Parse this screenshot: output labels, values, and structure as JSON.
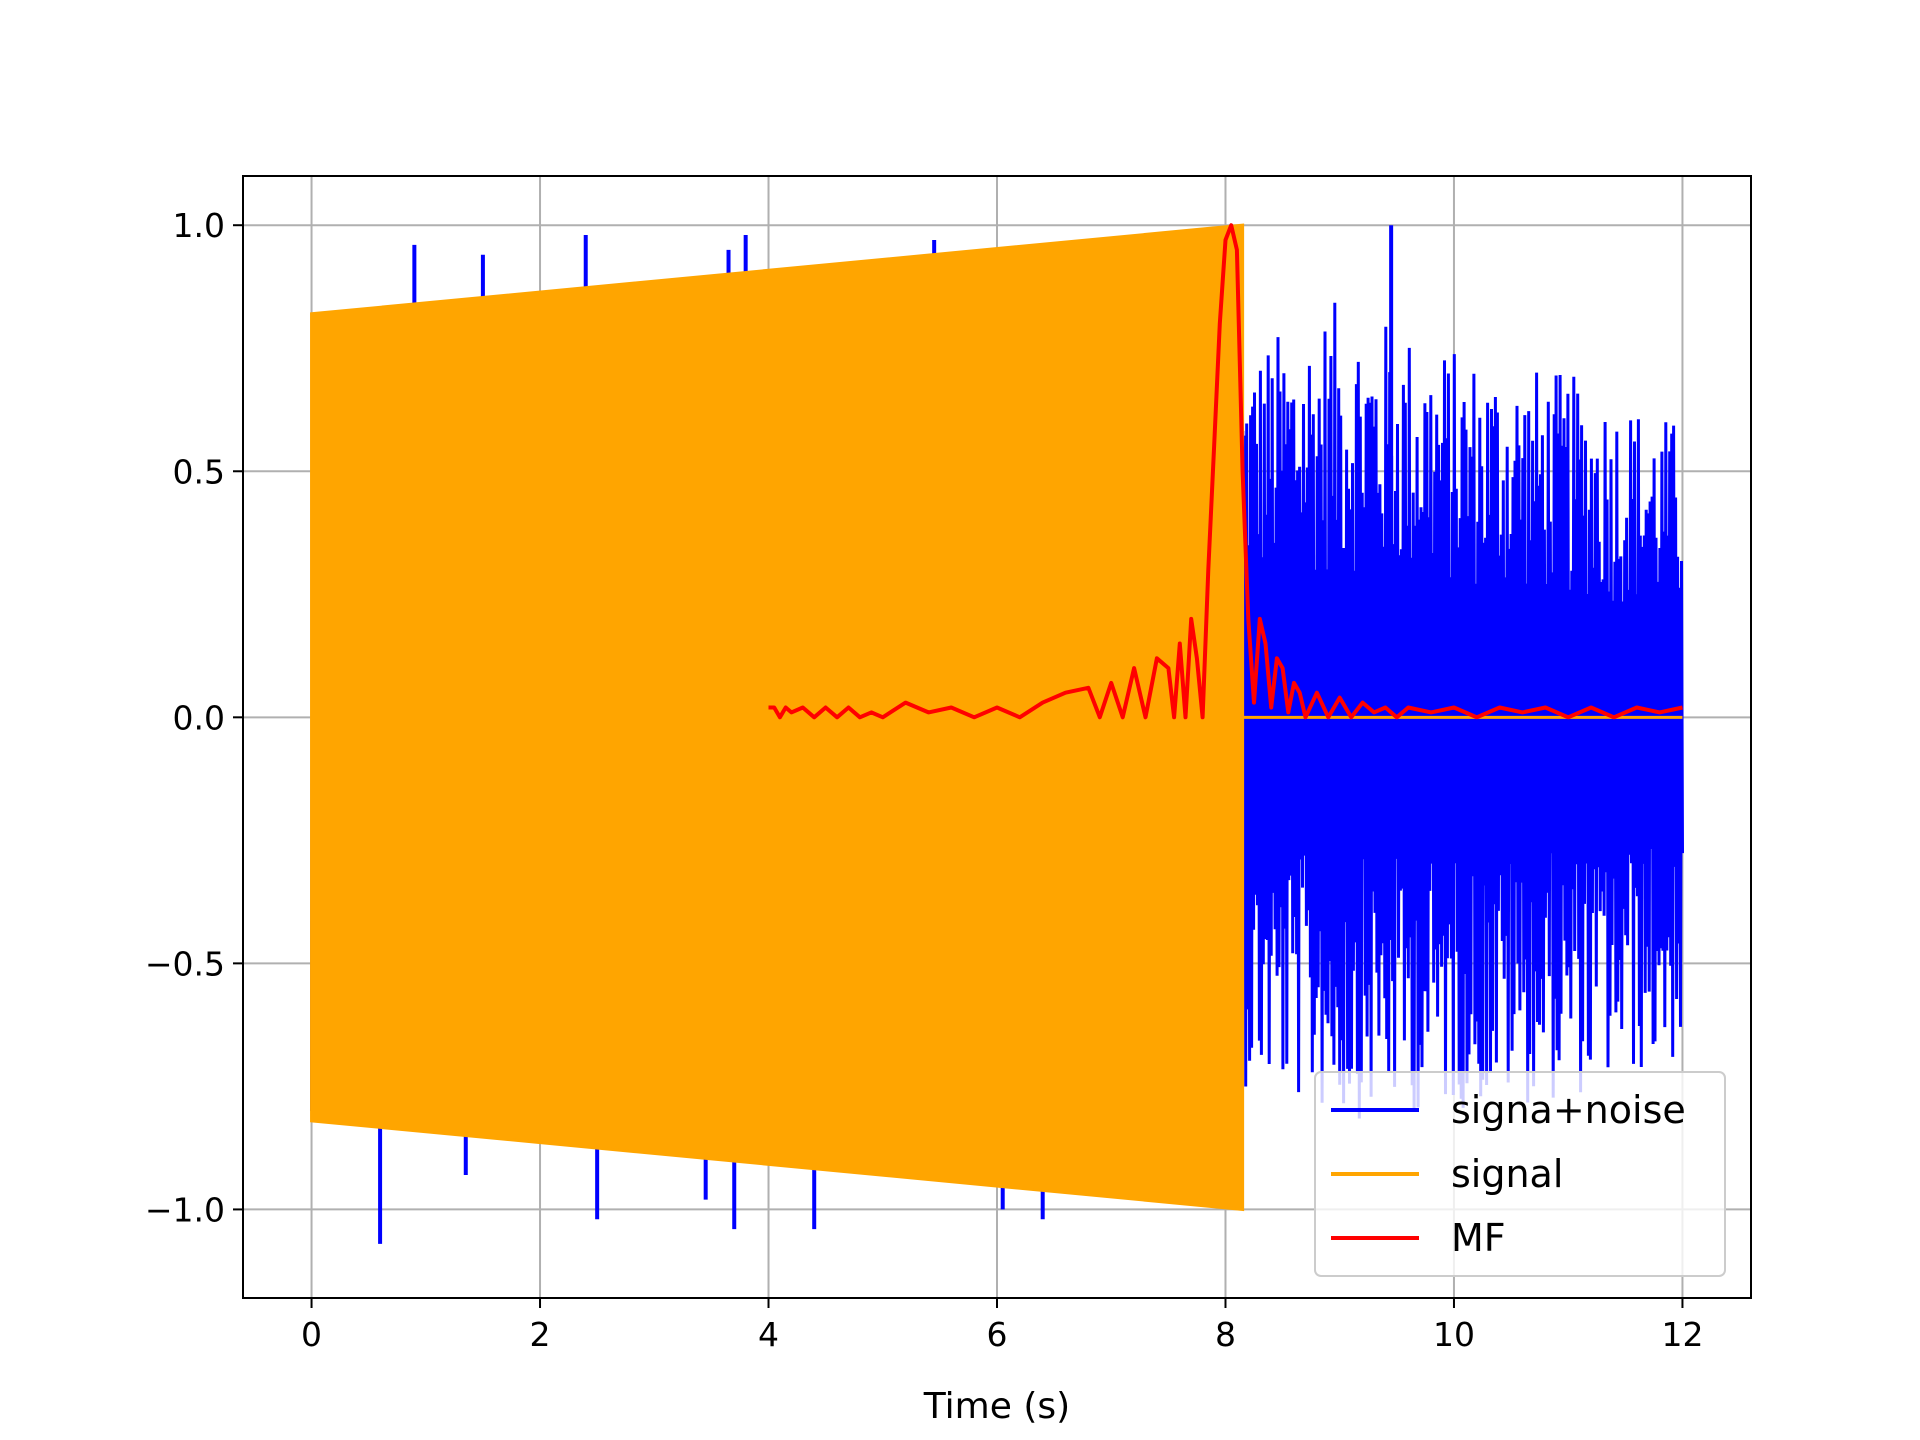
{
  "chart_data": {
    "type": "line",
    "title": "",
    "xlabel": "Time (s)",
    "ylabel": "",
    "xlim": [
      -0.6,
      12.6
    ],
    "ylim": [
      -1.18,
      1.1
    ],
    "xticks": [
      0,
      2,
      4,
      6,
      8,
      10,
      12
    ],
    "xtick_labels": [
      "0",
      "2",
      "4",
      "6",
      "8",
      "10",
      "12"
    ],
    "yticks": [
      -1.0,
      -0.5,
      0.0,
      0.5,
      1.0
    ],
    "ytick_labels": [
      "−1.0",
      "−0.5",
      "0.0",
      "0.5",
      "1.0"
    ],
    "grid": true,
    "legend_position": "lower right",
    "series": [
      {
        "name": "signa+noise",
        "color": "#0000ff",
        "description_hidden": false,
        "x_range": [
          0,
          12
        ],
        "noise_envelope": {
          "x": [
            8.15,
            9.0,
            10.0,
            11.0,
            12.0
          ],
          "upper": [
            0.75,
            0.85,
            0.75,
            0.7,
            0.6
          ],
          "lower": [
            -0.75,
            -0.82,
            -0.8,
            -0.78,
            -0.7
          ]
        },
        "spikes": [
          {
            "x": 0.9,
            "y": 0.96
          },
          {
            "x": 1.5,
            "y": 0.94
          },
          {
            "x": 2.4,
            "y": 0.98
          },
          {
            "x": 3.65,
            "y": 0.95
          },
          {
            "x": 3.8,
            "y": 0.98
          },
          {
            "x": 5.45,
            "y": 0.97
          },
          {
            "x": 9.45,
            "y": 1.0
          },
          {
            "x": 0.6,
            "y": -1.07
          },
          {
            "x": 1.35,
            "y": -0.93
          },
          {
            "x": 2.5,
            "y": -1.02
          },
          {
            "x": 3.7,
            "y": -1.04
          },
          {
            "x": 4.4,
            "y": -1.04
          },
          {
            "x": 6.05,
            "y": -1.0
          },
          {
            "x": 6.4,
            "y": -1.02
          },
          {
            "x": 3.45,
            "y": -0.98
          }
        ]
      },
      {
        "name": "signal",
        "color": "#ffa500",
        "x_range": [
          0,
          8.15
        ],
        "envelope": {
          "x": [
            0,
            8.15
          ],
          "upper": [
            0.82,
            1.0
          ],
          "lower": [
            -0.82,
            -1.0
          ]
        },
        "after": {
          "x": [
            8.15,
            12
          ],
          "y": 0.0
        }
      },
      {
        "name": "MF",
        "color": "#ff0000",
        "x": [
          4.0,
          4.05,
          4.1,
          4.15,
          4.2,
          4.3,
          4.4,
          4.5,
          4.6,
          4.7,
          4.8,
          4.9,
          5.0,
          5.2,
          5.4,
          5.6,
          5.8,
          6.0,
          6.2,
          6.4,
          6.6,
          6.8,
          6.9,
          7.0,
          7.1,
          7.2,
          7.3,
          7.4,
          7.5,
          7.55,
          7.6,
          7.65,
          7.7,
          7.75,
          7.8,
          7.85,
          7.9,
          7.95,
          8.0,
          8.05,
          8.1,
          8.15,
          8.2,
          8.25,
          8.3,
          8.35,
          8.4,
          8.45,
          8.5,
          8.55,
          8.6,
          8.65,
          8.7,
          8.8,
          8.9,
          9.0,
          9.1,
          9.2,
          9.3,
          9.4,
          9.5,
          9.6,
          9.8,
          10.0,
          10.2,
          10.4,
          10.6,
          10.8,
          11.0,
          11.2,
          11.4,
          11.6,
          11.8,
          12.0
        ],
        "y": [
          0.02,
          0.02,
          0.0,
          0.02,
          0.01,
          0.02,
          0.0,
          0.02,
          0.0,
          0.02,
          0.0,
          0.01,
          0.0,
          0.03,
          0.01,
          0.02,
          0.0,
          0.02,
          0.0,
          0.03,
          0.05,
          0.06,
          0.0,
          0.07,
          0.0,
          0.1,
          0.0,
          0.12,
          0.1,
          0.0,
          0.15,
          0.0,
          0.2,
          0.12,
          0.0,
          0.3,
          0.55,
          0.8,
          0.97,
          1.0,
          0.95,
          0.5,
          0.2,
          0.03,
          0.2,
          0.15,
          0.02,
          0.12,
          0.1,
          0.01,
          0.07,
          0.05,
          0.0,
          0.05,
          0.0,
          0.04,
          0.0,
          0.03,
          0.01,
          0.02,
          0.0,
          0.02,
          0.01,
          0.02,
          0.0,
          0.02,
          0.01,
          0.02,
          0.0,
          0.02,
          0.0,
          0.02,
          0.01,
          0.02
        ]
      }
    ]
  }
}
